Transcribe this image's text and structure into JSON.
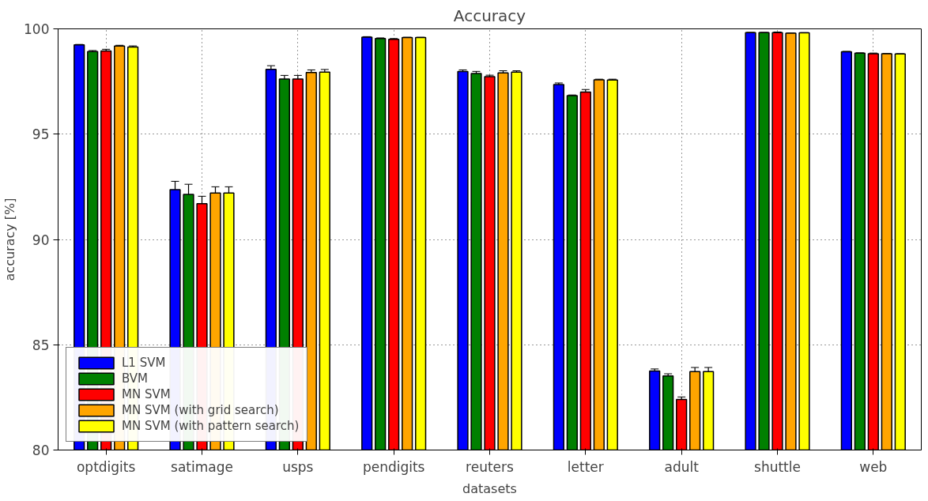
{
  "chart_data": {
    "type": "bar",
    "title": "Accuracy",
    "xlabel": "datasets",
    "ylabel": "accuracy [%]",
    "categories": [
      "optdigits",
      "satimage",
      "usps",
      "pendigits",
      "reuters",
      "letter",
      "adult",
      "shuttle",
      "web"
    ],
    "series": [
      {
        "name": "L1 SVM",
        "color": "#0000ff",
        "values": [
          99.24,
          92.36,
          98.08,
          99.61,
          97.97,
          97.35,
          83.75,
          99.82,
          98.91
        ],
        "errors": [
          0.02,
          0.4,
          0.17,
          0.02,
          0.08,
          0.08,
          0.1,
          0.01,
          0.02
        ]
      },
      {
        "name": "BVM",
        "color": "#008000",
        "values": [
          98.92,
          92.14,
          97.62,
          99.54,
          97.88,
          96.83,
          83.52,
          99.82,
          98.85
        ],
        "errors": [
          0.05,
          0.48,
          0.17,
          0.03,
          0.1,
          0.03,
          0.1,
          0.01,
          0.01
        ]
      },
      {
        "name": "MN SVM",
        "color": "#ff0000",
        "values": [
          98.95,
          91.7,
          97.62,
          99.5,
          97.73,
          97.0,
          82.4,
          99.82,
          98.82
        ],
        "errors": [
          0.08,
          0.35,
          0.17,
          0.04,
          0.07,
          0.12,
          0.12,
          0.03,
          0.03
        ]
      },
      {
        "name": "MN SVM (with grid search)",
        "color": "#ffa500",
        "values": [
          99.18,
          92.2,
          97.93,
          99.59,
          97.91,
          97.58,
          83.72,
          99.79,
          98.82
        ],
        "errors": [
          0.04,
          0.3,
          0.12,
          0.01,
          0.1,
          0.03,
          0.2,
          0.01,
          0.01
        ]
      },
      {
        "name": "MN SVM (with pattern search)",
        "color": "#ffff00",
        "values": [
          99.14,
          92.2,
          97.95,
          99.59,
          97.95,
          97.57,
          83.72,
          99.81,
          98.81
        ],
        "errors": [
          0.05,
          0.3,
          0.12,
          0.01,
          0.06,
          0.04,
          0.2,
          0.01,
          0.01
        ]
      }
    ],
    "ylim": [
      80,
      100
    ],
    "yticks": [
      80,
      85,
      90,
      95,
      100
    ],
    "grid": true,
    "legend": "bottom left"
  }
}
